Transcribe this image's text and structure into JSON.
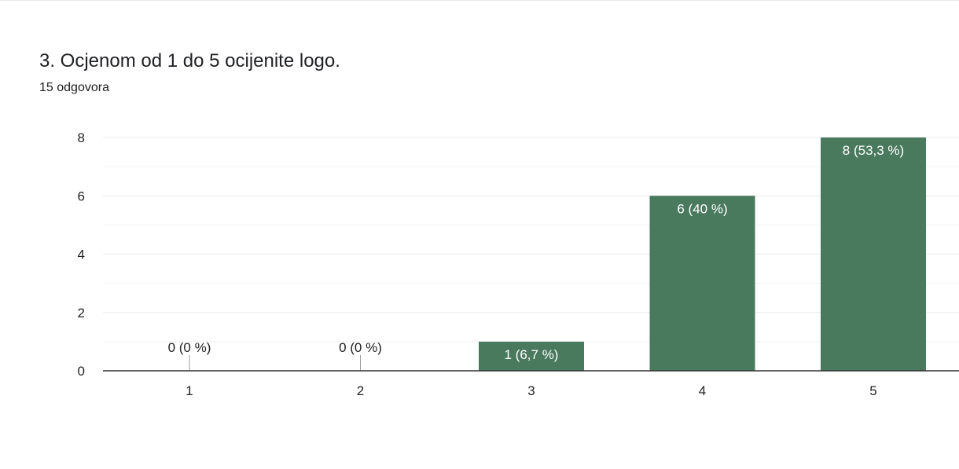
{
  "question": {
    "title": "3. Ocjenom od 1 do 5 ocijenite logo.",
    "response_count": "15 odgovora"
  },
  "colors": {
    "bar": "#4a7a5e",
    "grid": "#ebebeb",
    "axis": "#333333",
    "label_inside": "#ffffff",
    "label_outside": "#222222"
  },
  "chart_data": {
    "type": "bar",
    "categories": [
      "1",
      "2",
      "3",
      "4",
      "5"
    ],
    "values": [
      0,
      0,
      1,
      6,
      8
    ],
    "data_labels": [
      "0 (0 %)",
      "0 (0 %)",
      "1 (6,7 %)",
      "6 (40 %)",
      "8 (53,3 %)"
    ],
    "y_ticks": [
      "0",
      "2",
      "4",
      "6",
      "8"
    ],
    "ylim": [
      0,
      8
    ],
    "grid": true,
    "minor_grid": true,
    "title": "",
    "xlabel": "",
    "ylabel": ""
  }
}
